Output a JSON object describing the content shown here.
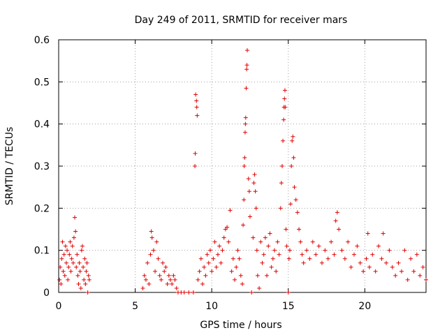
{
  "chart_data": {
    "type": "scatter",
    "title": "Day 249 of 2011, SRMTID for receiver mars",
    "xlabel": "GPS time / hours",
    "ylabel": "SRMTID / TECUs",
    "xlim": [
      0,
      24
    ],
    "ylim": [
      0,
      0.6
    ],
    "xticks": [
      0,
      5,
      10,
      15,
      20
    ],
    "xtick_labels": [
      "0",
      "5",
      "10",
      "15",
      "20"
    ],
    "yticks": [
      0,
      0.1,
      0.2,
      0.3,
      0.4,
      0.5,
      0.6
    ],
    "ytick_labels": [
      "0",
      "0.1",
      "0.2",
      "0.3",
      "0.4",
      "0.5",
      "0.6"
    ],
    "grid": true,
    "marker": "+",
    "color": "#e00000",
    "series": [
      {
        "name": "SRMTID",
        "points": [
          [
            0.05,
            0.03
          ],
          [
            0.1,
            0.06
          ],
          [
            0.15,
            0.02
          ],
          [
            0.2,
            0.08
          ],
          [
            0.25,
            0.12
          ],
          [
            0.3,
            0.05
          ],
          [
            0.35,
            0.09
          ],
          [
            0.4,
            0.04
          ],
          [
            0.45,
            0.11
          ],
          [
            0.5,
            0.07
          ],
          [
            0.55,
            0.1
          ],
          [
            0.6,
            0.03
          ],
          [
            0.65,
            0.06
          ],
          [
            0.7,
            0.09
          ],
          [
            0.75,
            0.12
          ],
          [
            0.8,
            0.05
          ],
          [
            0.85,
            0.08
          ],
          [
            0.9,
            0.11
          ],
          [
            0.95,
            0.07
          ],
          [
            1.0,
            0.13
          ],
          [
            1.05,
            0.178
          ],
          [
            1.1,
            0.145
          ],
          [
            1.15,
            0.06
          ],
          [
            1.2,
            0.09
          ],
          [
            1.25,
            0.04
          ],
          [
            1.3,
            0.02
          ],
          [
            1.35,
            0.07
          ],
          [
            1.4,
            0.05
          ],
          [
            1.45,
            0.01
          ],
          [
            1.5,
            0.1
          ],
          [
            1.55,
            0.11
          ],
          [
            1.6,
            0.06
          ],
          [
            1.65,
            0.03
          ],
          [
            1.7,
            0.08
          ],
          [
            1.75,
            0.02
          ],
          [
            1.8,
            0.05
          ],
          [
            1.85,
            0.07
          ],
          [
            1.9,
            0.0
          ],
          [
            1.95,
            0.04
          ],
          [
            2.0,
            0.03
          ],
          [
            5.5,
            0.01
          ],
          [
            5.6,
            0.04
          ],
          [
            5.7,
            0.03
          ],
          [
            5.8,
            0.07
          ],
          [
            5.9,
            0.02
          ],
          [
            6.0,
            0.09
          ],
          [
            6.05,
            0.145
          ],
          [
            6.1,
            0.13
          ],
          [
            6.2,
            0.1
          ],
          [
            6.3,
            0.05
          ],
          [
            6.4,
            0.12
          ],
          [
            6.5,
            0.08
          ],
          [
            6.6,
            0.04
          ],
          [
            6.7,
            0.03
          ],
          [
            6.8,
            0.07
          ],
          [
            6.9,
            0.05
          ],
          [
            7.0,
            0.06
          ],
          [
            7.1,
            0.02
          ],
          [
            7.2,
            0.04
          ],
          [
            7.3,
            0.03
          ],
          [
            7.4,
            0.02
          ],
          [
            7.5,
            0.04
          ],
          [
            7.6,
            0.03
          ],
          [
            7.7,
            0.01
          ],
          [
            7.8,
            0.0
          ],
          [
            8.0,
            0.0
          ],
          [
            8.2,
            0.0
          ],
          [
            8.5,
            0.0
          ],
          [
            8.8,
            0.0
          ],
          [
            8.9,
            0.3
          ],
          [
            8.92,
            0.33
          ],
          [
            8.95,
            0.47
          ],
          [
            9.0,
            0.455
          ],
          [
            9.02,
            0.44
          ],
          [
            9.05,
            0.42
          ],
          [
            9.1,
            0.03
          ],
          [
            9.2,
            0.05
          ],
          [
            9.3,
            0.08
          ],
          [
            9.4,
            0.02
          ],
          [
            9.5,
            0.06
          ],
          [
            9.6,
            0.04
          ],
          [
            9.7,
            0.09
          ],
          [
            9.8,
            0.07
          ],
          [
            9.9,
            0.1
          ],
          [
            10.0,
            0.05
          ],
          [
            10.1,
            0.08
          ],
          [
            10.2,
            0.12
          ],
          [
            10.3,
            0.06
          ],
          [
            10.4,
            0.09
          ],
          [
            10.5,
            0.11
          ],
          [
            10.6,
            0.07
          ],
          [
            10.7,
            0.1
          ],
          [
            10.8,
            0.13
          ],
          [
            10.9,
            0.15
          ],
          [
            11.0,
            0.155
          ],
          [
            11.1,
            0.12
          ],
          [
            11.2,
            0.195
          ],
          [
            11.3,
            0.05
          ],
          [
            11.4,
            0.08
          ],
          [
            11.5,
            0.03
          ],
          [
            11.6,
            0.06
          ],
          [
            11.7,
            0.1
          ],
          [
            11.8,
            0.08
          ],
          [
            11.9,
            0.04
          ],
          [
            12.0,
            0.02
          ],
          [
            12.05,
            0.16
          ],
          [
            12.1,
            0.22
          ],
          [
            12.12,
            0.3
          ],
          [
            12.15,
            0.32
          ],
          [
            12.18,
            0.38
          ],
          [
            12.2,
            0.4
          ],
          [
            12.22,
            0.415
          ],
          [
            12.25,
            0.485
          ],
          [
            12.28,
            0.53
          ],
          [
            12.3,
            0.54
          ],
          [
            12.32,
            0.575
          ],
          [
            12.4,
            0.27
          ],
          [
            12.45,
            0.24
          ],
          [
            12.5,
            0.18
          ],
          [
            12.6,
            0.0
          ],
          [
            12.7,
            0.13
          ],
          [
            12.75,
            0.26
          ],
          [
            12.8,
            0.28
          ],
          [
            12.85,
            0.24
          ],
          [
            12.9,
            0.2
          ],
          [
            12.95,
            0.1
          ],
          [
            13.0,
            0.04
          ],
          [
            13.1,
            0.01
          ],
          [
            13.2,
            0.12
          ],
          [
            13.3,
            0.07
          ],
          [
            13.4,
            0.09
          ],
          [
            13.5,
            0.13
          ],
          [
            13.6,
            0.04
          ],
          [
            13.7,
            0.11
          ],
          [
            13.8,
            0.14
          ],
          [
            13.9,
            0.06
          ],
          [
            14.0,
            0.08
          ],
          [
            14.1,
            0.1
          ],
          [
            14.2,
            0.05
          ],
          [
            14.3,
            0.12
          ],
          [
            14.4,
            0.09
          ],
          [
            14.5,
            0.2
          ],
          [
            14.55,
            0.26
          ],
          [
            14.6,
            0.3
          ],
          [
            14.65,
            0.36
          ],
          [
            14.7,
            0.41
          ],
          [
            14.72,
            0.44
          ],
          [
            14.75,
            0.46
          ],
          [
            14.78,
            0.48
          ],
          [
            14.8,
            0.44
          ],
          [
            14.85,
            0.15
          ],
          [
            14.9,
            0.11
          ],
          [
            15.0,
            0.0
          ],
          [
            15.05,
            0.08
          ],
          [
            15.1,
            0.1
          ],
          [
            15.15,
            0.21
          ],
          [
            15.2,
            0.3
          ],
          [
            15.25,
            0.36
          ],
          [
            15.3,
            0.37
          ],
          [
            15.35,
            0.32
          ],
          [
            15.4,
            0.25
          ],
          [
            15.5,
            0.22
          ],
          [
            15.6,
            0.19
          ],
          [
            15.7,
            0.15
          ],
          [
            15.8,
            0.12
          ],
          [
            15.9,
            0.09
          ],
          [
            16.0,
            0.07
          ],
          [
            16.2,
            0.1
          ],
          [
            16.4,
            0.08
          ],
          [
            16.6,
            0.12
          ],
          [
            16.8,
            0.09
          ],
          [
            17.0,
            0.11
          ],
          [
            17.2,
            0.07
          ],
          [
            17.4,
            0.1
          ],
          [
            17.6,
            0.08
          ],
          [
            17.8,
            0.12
          ],
          [
            18.0,
            0.09
          ],
          [
            18.1,
            0.17
          ],
          [
            18.2,
            0.19
          ],
          [
            18.3,
            0.15
          ],
          [
            18.5,
            0.1
          ],
          [
            18.7,
            0.08
          ],
          [
            18.9,
            0.12
          ],
          [
            19.1,
            0.06
          ],
          [
            19.3,
            0.09
          ],
          [
            19.5,
            0.11
          ],
          [
            19.7,
            0.07
          ],
          [
            19.9,
            0.05
          ],
          [
            20.1,
            0.08
          ],
          [
            20.2,
            0.14
          ],
          [
            20.3,
            0.06
          ],
          [
            20.5,
            0.09
          ],
          [
            20.7,
            0.05
          ],
          [
            20.9,
            0.11
          ],
          [
            21.1,
            0.08
          ],
          [
            21.2,
            0.14
          ],
          [
            21.4,
            0.07
          ],
          [
            21.6,
            0.1
          ],
          [
            21.8,
            0.06
          ],
          [
            22.0,
            0.04
          ],
          [
            22.2,
            0.07
          ],
          [
            22.4,
            0.05
          ],
          [
            22.6,
            0.1
          ],
          [
            22.8,
            0.03
          ],
          [
            23.0,
            0.08
          ],
          [
            23.2,
            0.05
          ],
          [
            23.4,
            0.09
          ],
          [
            23.6,
            0.04
          ],
          [
            23.8,
            0.06
          ],
          [
            24.0,
            0.03
          ]
        ]
      }
    ]
  }
}
